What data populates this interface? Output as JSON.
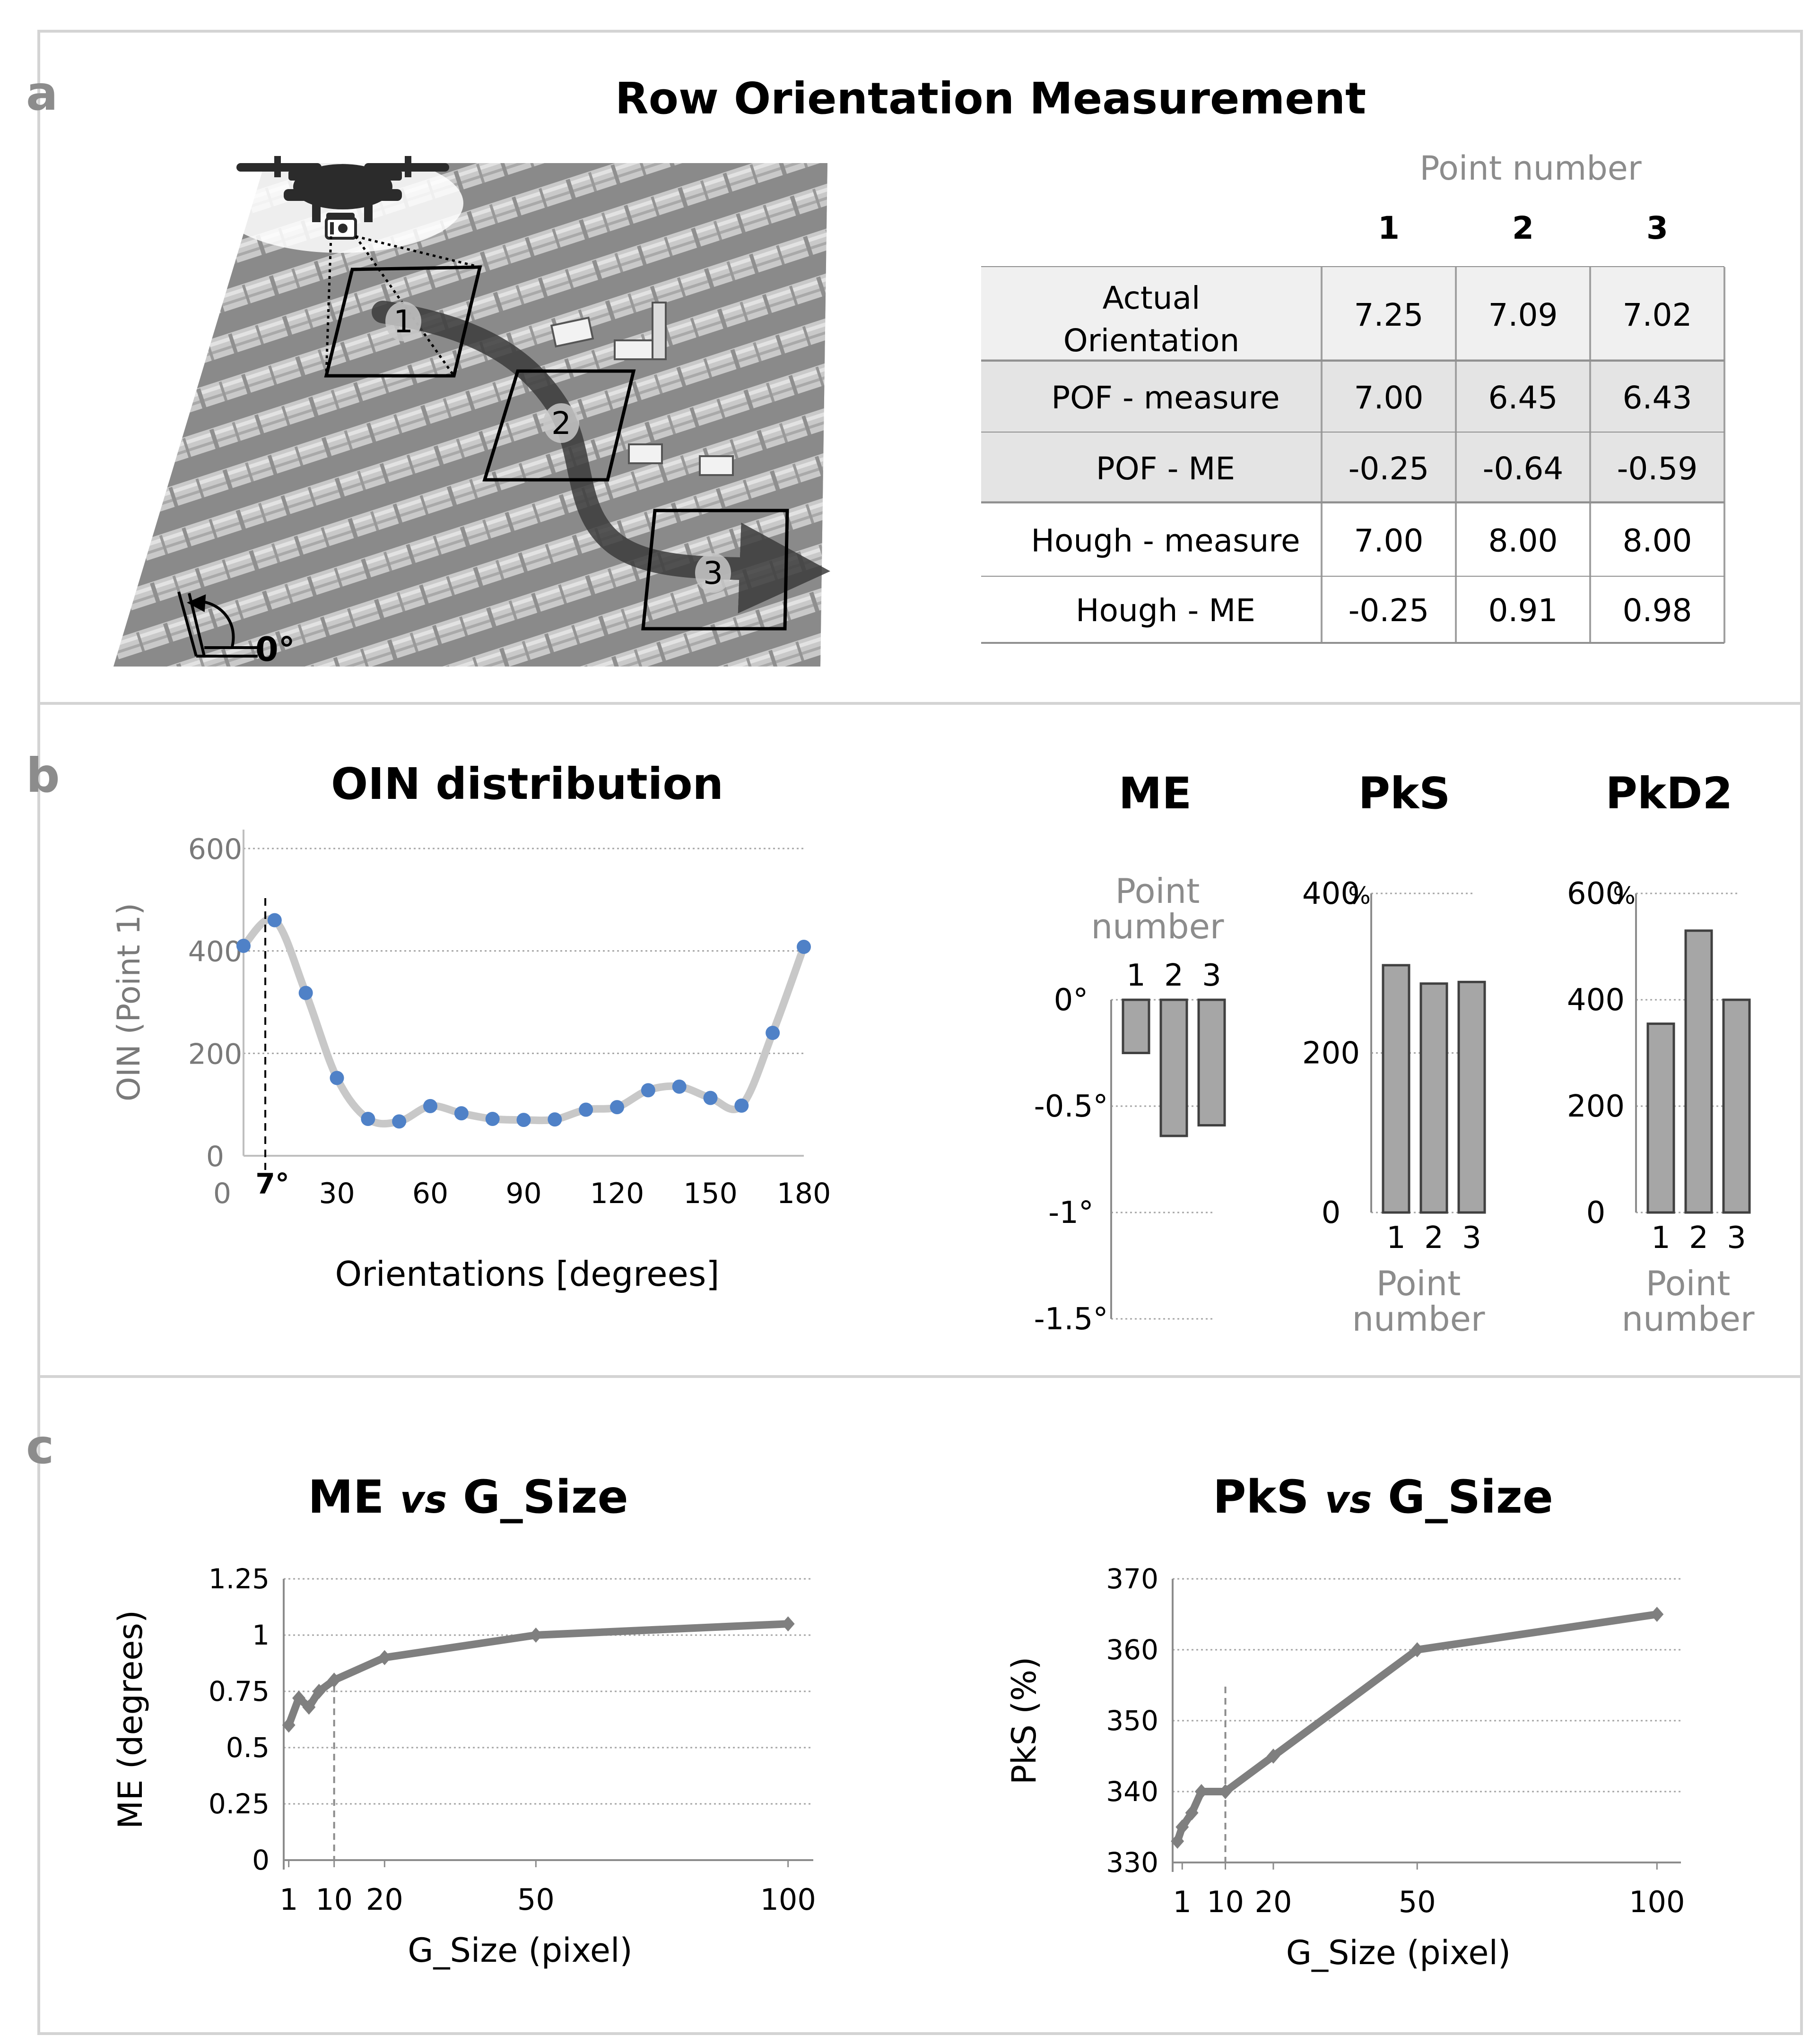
{
  "colors": {
    "frame": "#d4d4d4",
    "bar_fill": "#a6a6a6",
    "bar_stroke": "#404040",
    "line_gray": "#7f7f7f",
    "curve_gray": "#c8c8c8",
    "dot_blue": "#4f81c7",
    "label_gray": "#8c8c8c",
    "text": "#000000",
    "grid": "#a6a6a6"
  },
  "panel_a": {
    "letter": "a",
    "title": "Row Orientation Measurement",
    "figure": {
      "point_labels": [
        "1",
        "2",
        "3"
      ],
      "angle_label": "0°",
      "icons": [
        "drone-icon",
        "camera-icon",
        "arrow-icon"
      ]
    },
    "table": {
      "column_group_label": "Point number",
      "columns": [
        "1",
        "2",
        "3"
      ],
      "rows": [
        {
          "label": "Actual Orientation",
          "label_lines": [
            "Actual",
            "Orientation"
          ],
          "values": [
            "7.25",
            "7.09",
            "7.02"
          ]
        },
        {
          "label": "POF - measure",
          "values": [
            "7.00",
            "6.45",
            "6.43"
          ]
        },
        {
          "label": "POF - ME",
          "values": [
            "-0.25",
            "-0.64",
            "-0.59"
          ]
        },
        {
          "label": "Hough - measure",
          "values": [
            "7.00",
            "8.00",
            "8.00"
          ]
        },
        {
          "label": "Hough - ME",
          "values": [
            "-0.25",
            "0.91",
            "0.98"
          ]
        }
      ]
    }
  },
  "panel_b": {
    "letter": "b",
    "point_number_label": "Point number",
    "point_number_lines": [
      "Point",
      "number"
    ]
  },
  "panel_c": {
    "letter": "c"
  },
  "chart_data": [
    {
      "id": "oin",
      "type": "scatter",
      "title": "OIN distribution",
      "xlabel": "Orientations [degrees]",
      "ylabel": "OIN (Point 1)",
      "xlim": [
        0,
        180
      ],
      "ylim": [
        0,
        600
      ],
      "xticks": [
        0,
        30,
        60,
        90,
        120,
        150,
        180
      ],
      "yticks": [
        0,
        200,
        400,
        600
      ],
      "grid": true,
      "x": [
        0,
        10,
        20,
        30,
        40,
        50,
        60,
        70,
        80,
        90,
        100,
        110,
        120,
        130,
        140,
        150,
        160,
        170,
        180
      ],
      "y": [
        410,
        460,
        318,
        152,
        72,
        67,
        97,
        83,
        72,
        70,
        71,
        90,
        95,
        128,
        135,
        113,
        98,
        240,
        408
      ],
      "smooth_line": true,
      "annotation": {
        "x": 7,
        "label": "7°"
      }
    },
    {
      "id": "me_bar",
      "type": "bar",
      "title": "ME",
      "categories": [
        "1",
        "2",
        "3"
      ],
      "values": [
        -0.25,
        -0.64,
        -0.59
      ],
      "ylim": [
        -1.5,
        0
      ],
      "yticks": [
        0,
        -0.5,
        -1,
        -1.5
      ],
      "ytick_labels": [
        "0°",
        "-0.5°",
        "-1°",
        "-1.5°"
      ],
      "xlabel": "Point number"
    },
    {
      "id": "pks_bar",
      "type": "bar",
      "title": "PkS",
      "categories": [
        "1",
        "2",
        "3"
      ],
      "values": [
        310,
        287,
        289
      ],
      "ylim": [
        0,
        400
      ],
      "yticks": [
        0,
        200,
        400
      ],
      "ytick_labels": [
        "0",
        "200",
        "400"
      ],
      "top_unit": "%",
      "xlabel": "Point number"
    },
    {
      "id": "pkd2_bar",
      "type": "bar",
      "title": "PkD2",
      "categories": [
        "1",
        "2",
        "3"
      ],
      "values": [
        355,
        530,
        400
      ],
      "ylim": [
        0,
        600
      ],
      "yticks": [
        0,
        200,
        400,
        600
      ],
      "ytick_labels": [
        "0",
        "200",
        "400",
        "600"
      ],
      "top_unit": "%",
      "xlabel": "Point number"
    },
    {
      "id": "me_gsize",
      "type": "line",
      "title_parts": [
        "ME",
        "vs",
        "G_Size"
      ],
      "xlabel": "G_Size (pixel)",
      "ylabel": "ME (degrees)",
      "xlim": [
        0,
        105
      ],
      "ylim": [
        0,
        1.25
      ],
      "xticks": [
        1,
        10,
        20,
        50,
        100
      ],
      "yticks": [
        0,
        0.25,
        0.5,
        0.75,
        1,
        1.25
      ],
      "ytick_labels": [
        "0",
        "0.25",
        "0.5",
        "0.75",
        "1",
        "1.25"
      ],
      "x": [
        1,
        3,
        5,
        7,
        10,
        20,
        50,
        100
      ],
      "y": [
        0.6,
        0.72,
        0.68,
        0.75,
        0.8,
        0.9,
        1.0,
        1.05
      ],
      "marker": "diamond",
      "vline": 10
    },
    {
      "id": "pks_gsize",
      "type": "line",
      "title_parts": [
        "PkS",
        "vs",
        "G_Size"
      ],
      "xlabel": "G_Size (pixel)",
      "ylabel": "PkS (%)",
      "xlim": [
        -1,
        105
      ],
      "ylim": [
        330,
        370
      ],
      "xticks": [
        1,
        10,
        20,
        50,
        100
      ],
      "yticks": [
        330,
        340,
        350,
        360,
        370
      ],
      "ytick_labels": [
        "330",
        "340",
        "350",
        "360",
        "370"
      ],
      "x": [
        0,
        1,
        3,
        5,
        10,
        20,
        50,
        100
      ],
      "y": [
        333,
        335,
        337,
        340,
        340,
        345,
        360,
        365
      ],
      "marker": "diamond",
      "vline": 10
    }
  ]
}
